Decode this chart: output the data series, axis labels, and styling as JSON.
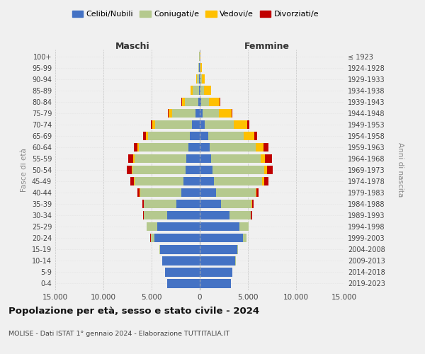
{
  "age_groups": [
    "0-4",
    "5-9",
    "10-14",
    "15-19",
    "20-24",
    "25-29",
    "30-34",
    "35-39",
    "40-44",
    "45-49",
    "50-54",
    "55-59",
    "60-64",
    "65-69",
    "70-74",
    "75-79",
    "80-84",
    "85-89",
    "90-94",
    "95-99",
    "100+"
  ],
  "birth_years": [
    "2019-2023",
    "2014-2018",
    "2009-2013",
    "2004-2008",
    "1999-2003",
    "1994-1998",
    "1989-1993",
    "1984-1988",
    "1979-1983",
    "1974-1978",
    "1969-1973",
    "1964-1968",
    "1959-1963",
    "1954-1958",
    "1949-1953",
    "1944-1948",
    "1939-1943",
    "1934-1938",
    "1929-1933",
    "1924-1928",
    "≤ 1923"
  ],
  "maschi": {
    "celibi": [
      3400,
      3600,
      3900,
      4100,
      4700,
      4400,
      3400,
      2400,
      1900,
      1700,
      1500,
      1400,
      1200,
      1000,
      800,
      450,
      170,
      90,
      50,
      40,
      15
    ],
    "coniugati": [
      5,
      10,
      20,
      80,
      400,
      1100,
      2400,
      3400,
      4300,
      5100,
      5500,
      5400,
      5100,
      4400,
      3800,
      2400,
      1350,
      650,
      250,
      110,
      25
    ],
    "vedovi": [
      0,
      1,
      1,
      2,
      5,
      10,
      20,
      30,
      40,
      60,
      80,
      100,
      150,
      200,
      350,
      400,
      350,
      200,
      80,
      25,
      5
    ],
    "divorziati": [
      0,
      1,
      2,
      5,
      10,
      30,
      80,
      130,
      200,
      350,
      500,
      550,
      400,
      250,
      150,
      80,
      40,
      20,
      10,
      5,
      2
    ]
  },
  "femmine": {
    "nubili": [
      3200,
      3400,
      3700,
      3900,
      4500,
      4100,
      3100,
      2200,
      1700,
      1500,
      1300,
      1200,
      1000,
      850,
      550,
      300,
      120,
      60,
      40,
      30,
      15
    ],
    "coniugate": [
      3,
      8,
      15,
      70,
      350,
      950,
      2200,
      3200,
      4100,
      5000,
      5400,
      5100,
      4800,
      3700,
      3000,
      1700,
      850,
      400,
      180,
      80,
      20
    ],
    "vedove": [
      0,
      1,
      1,
      3,
      8,
      15,
      30,
      60,
      100,
      200,
      300,
      500,
      800,
      1100,
      1400,
      1300,
      1100,
      700,
      280,
      80,
      15
    ],
    "divorziate": [
      0,
      1,
      2,
      5,
      10,
      30,
      80,
      130,
      200,
      400,
      600,
      700,
      500,
      300,
      200,
      100,
      60,
      30,
      15,
      5,
      2
    ]
  },
  "colors": {
    "celibi": "#4472c4",
    "coniugati": "#b5c98e",
    "vedovi": "#ffc000",
    "divorziati": "#c00000"
  },
  "xlim": 15000,
  "title": "Popolazione per età, sesso e stato civile - 2024",
  "subtitle": "MOLISE - Dati ISTAT 1° gennaio 2024 - Elaborazione TUTTITALIA.IT",
  "ylabel_left": "Fasce di età",
  "ylabel_right": "Anni di nascita",
  "legend_labels": [
    "Celibi/Nubili",
    "Coniugati/e",
    "Vedovi/e",
    "Divorziati/e"
  ],
  "maschi_label": "Maschi",
  "femmine_label": "Femmine",
  "bg_color": "#f0f0f0",
  "grid_color": "#cccccc"
}
